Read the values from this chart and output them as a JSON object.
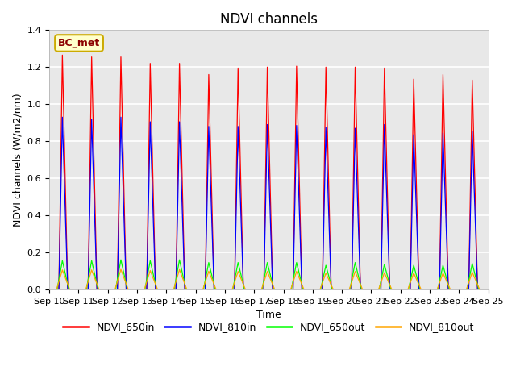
{
  "title": "NDVI channels",
  "xlabel": "Time",
  "ylabel": "NDVI channels (W/m2/nm)",
  "ylim": [
    0,
    1.4
  ],
  "annotation": "BC_met",
  "legend_labels": [
    "NDVI_650in",
    "NDVI_810in",
    "NDVI_650out",
    "NDVI_810out"
  ],
  "line_colors": [
    "red",
    "blue",
    "lime",
    "orange"
  ],
  "num_peaks": 15,
  "peak_heights_650in": [
    1.265,
    1.255,
    1.255,
    1.22,
    1.22,
    1.16,
    1.195,
    1.2,
    1.205,
    1.2,
    1.2,
    1.195,
    1.135,
    1.16,
    1.13
  ],
  "peak_heights_810in": [
    0.93,
    0.92,
    0.93,
    0.905,
    0.905,
    0.88,
    0.88,
    0.89,
    0.885,
    0.875,
    0.87,
    0.89,
    0.835,
    0.845,
    0.855
  ],
  "peak_heights_650out": [
    0.155,
    0.155,
    0.16,
    0.155,
    0.16,
    0.145,
    0.145,
    0.145,
    0.145,
    0.13,
    0.145,
    0.135,
    0.13,
    0.13,
    0.14
  ],
  "peak_heights_810out": [
    0.105,
    0.105,
    0.108,
    0.102,
    0.107,
    0.098,
    0.097,
    0.097,
    0.097,
    0.088,
    0.097,
    0.09,
    0.088,
    0.088,
    0.093
  ],
  "xtick_labels": [
    "Sep 10",
    "Sep 11",
    "Sep 12",
    "Sep 13",
    "Sep 14",
    "Sep 15",
    "Sep 16",
    "Sep 17",
    "Sep 18",
    "Sep 19",
    "Sep 20",
    "Sep 21",
    "Sep 22",
    "Sep 23",
    "Sep 24",
    "Sep 25"
  ],
  "background_color": "#e8e8e8",
  "grid_color": "#ffffff",
  "title_fontsize": 12,
  "label_fontsize": 9,
  "tick_fontsize": 8
}
